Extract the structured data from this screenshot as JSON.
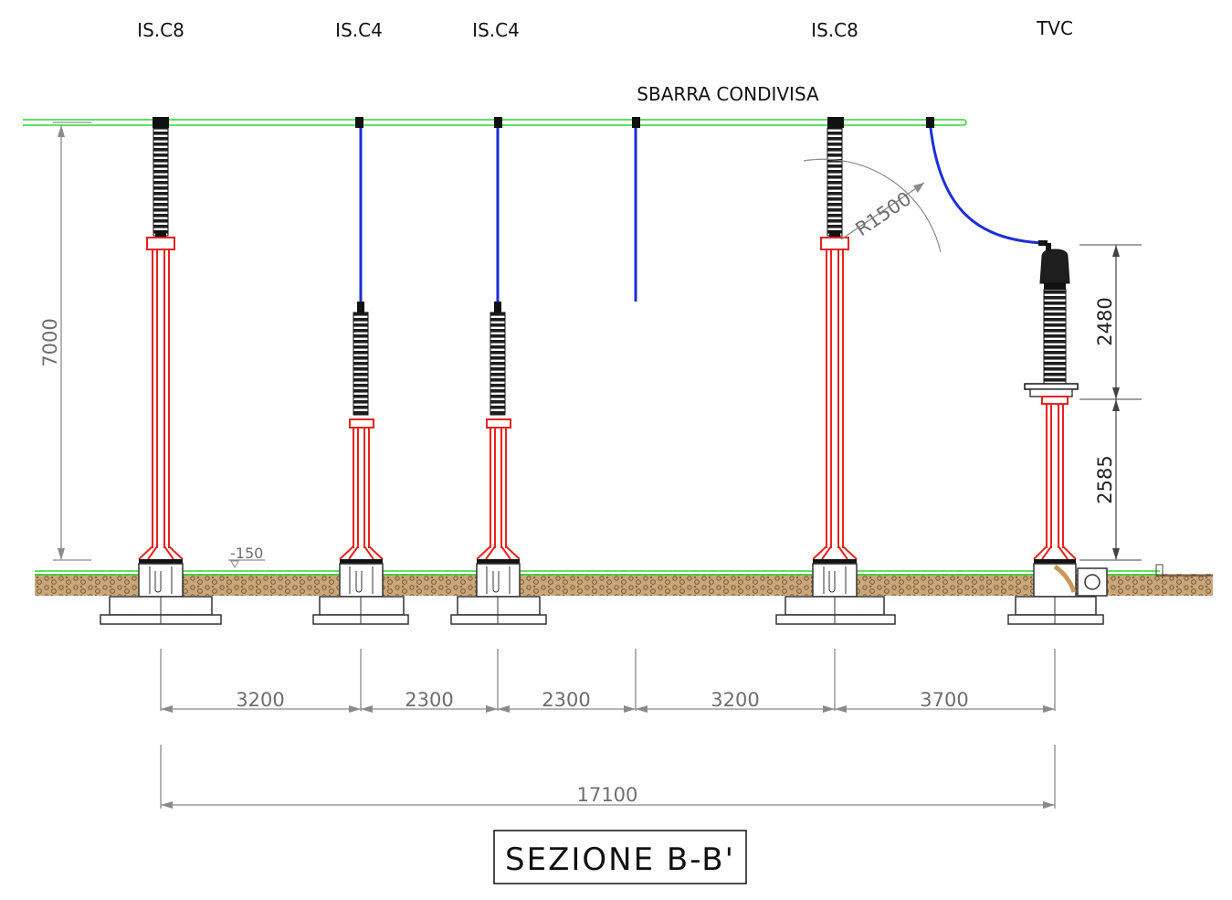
{
  "title": "SEZIONE B-B'",
  "busbar_label": "SBARRA CONDIVISA",
  "equipment_labels": [
    "IS.C8",
    "IS.C4",
    "IS.C4",
    "IS.C8",
    "TVC"
  ],
  "dimensions": {
    "height_total": "7000",
    "radius": "R1500",
    "tvc_upper": "2480",
    "tvc_lower": "2585",
    "ground_level": "-150",
    "spacings": [
      "3200",
      "2300",
      "2300",
      "3200",
      "3700"
    ],
    "overall": "17100"
  },
  "colors": {
    "support": "#e8231e",
    "conductor": "#1a2ed8",
    "busbar": "#2fd62f",
    "insulator": "#222222",
    "soil": "#a87a4a"
  }
}
